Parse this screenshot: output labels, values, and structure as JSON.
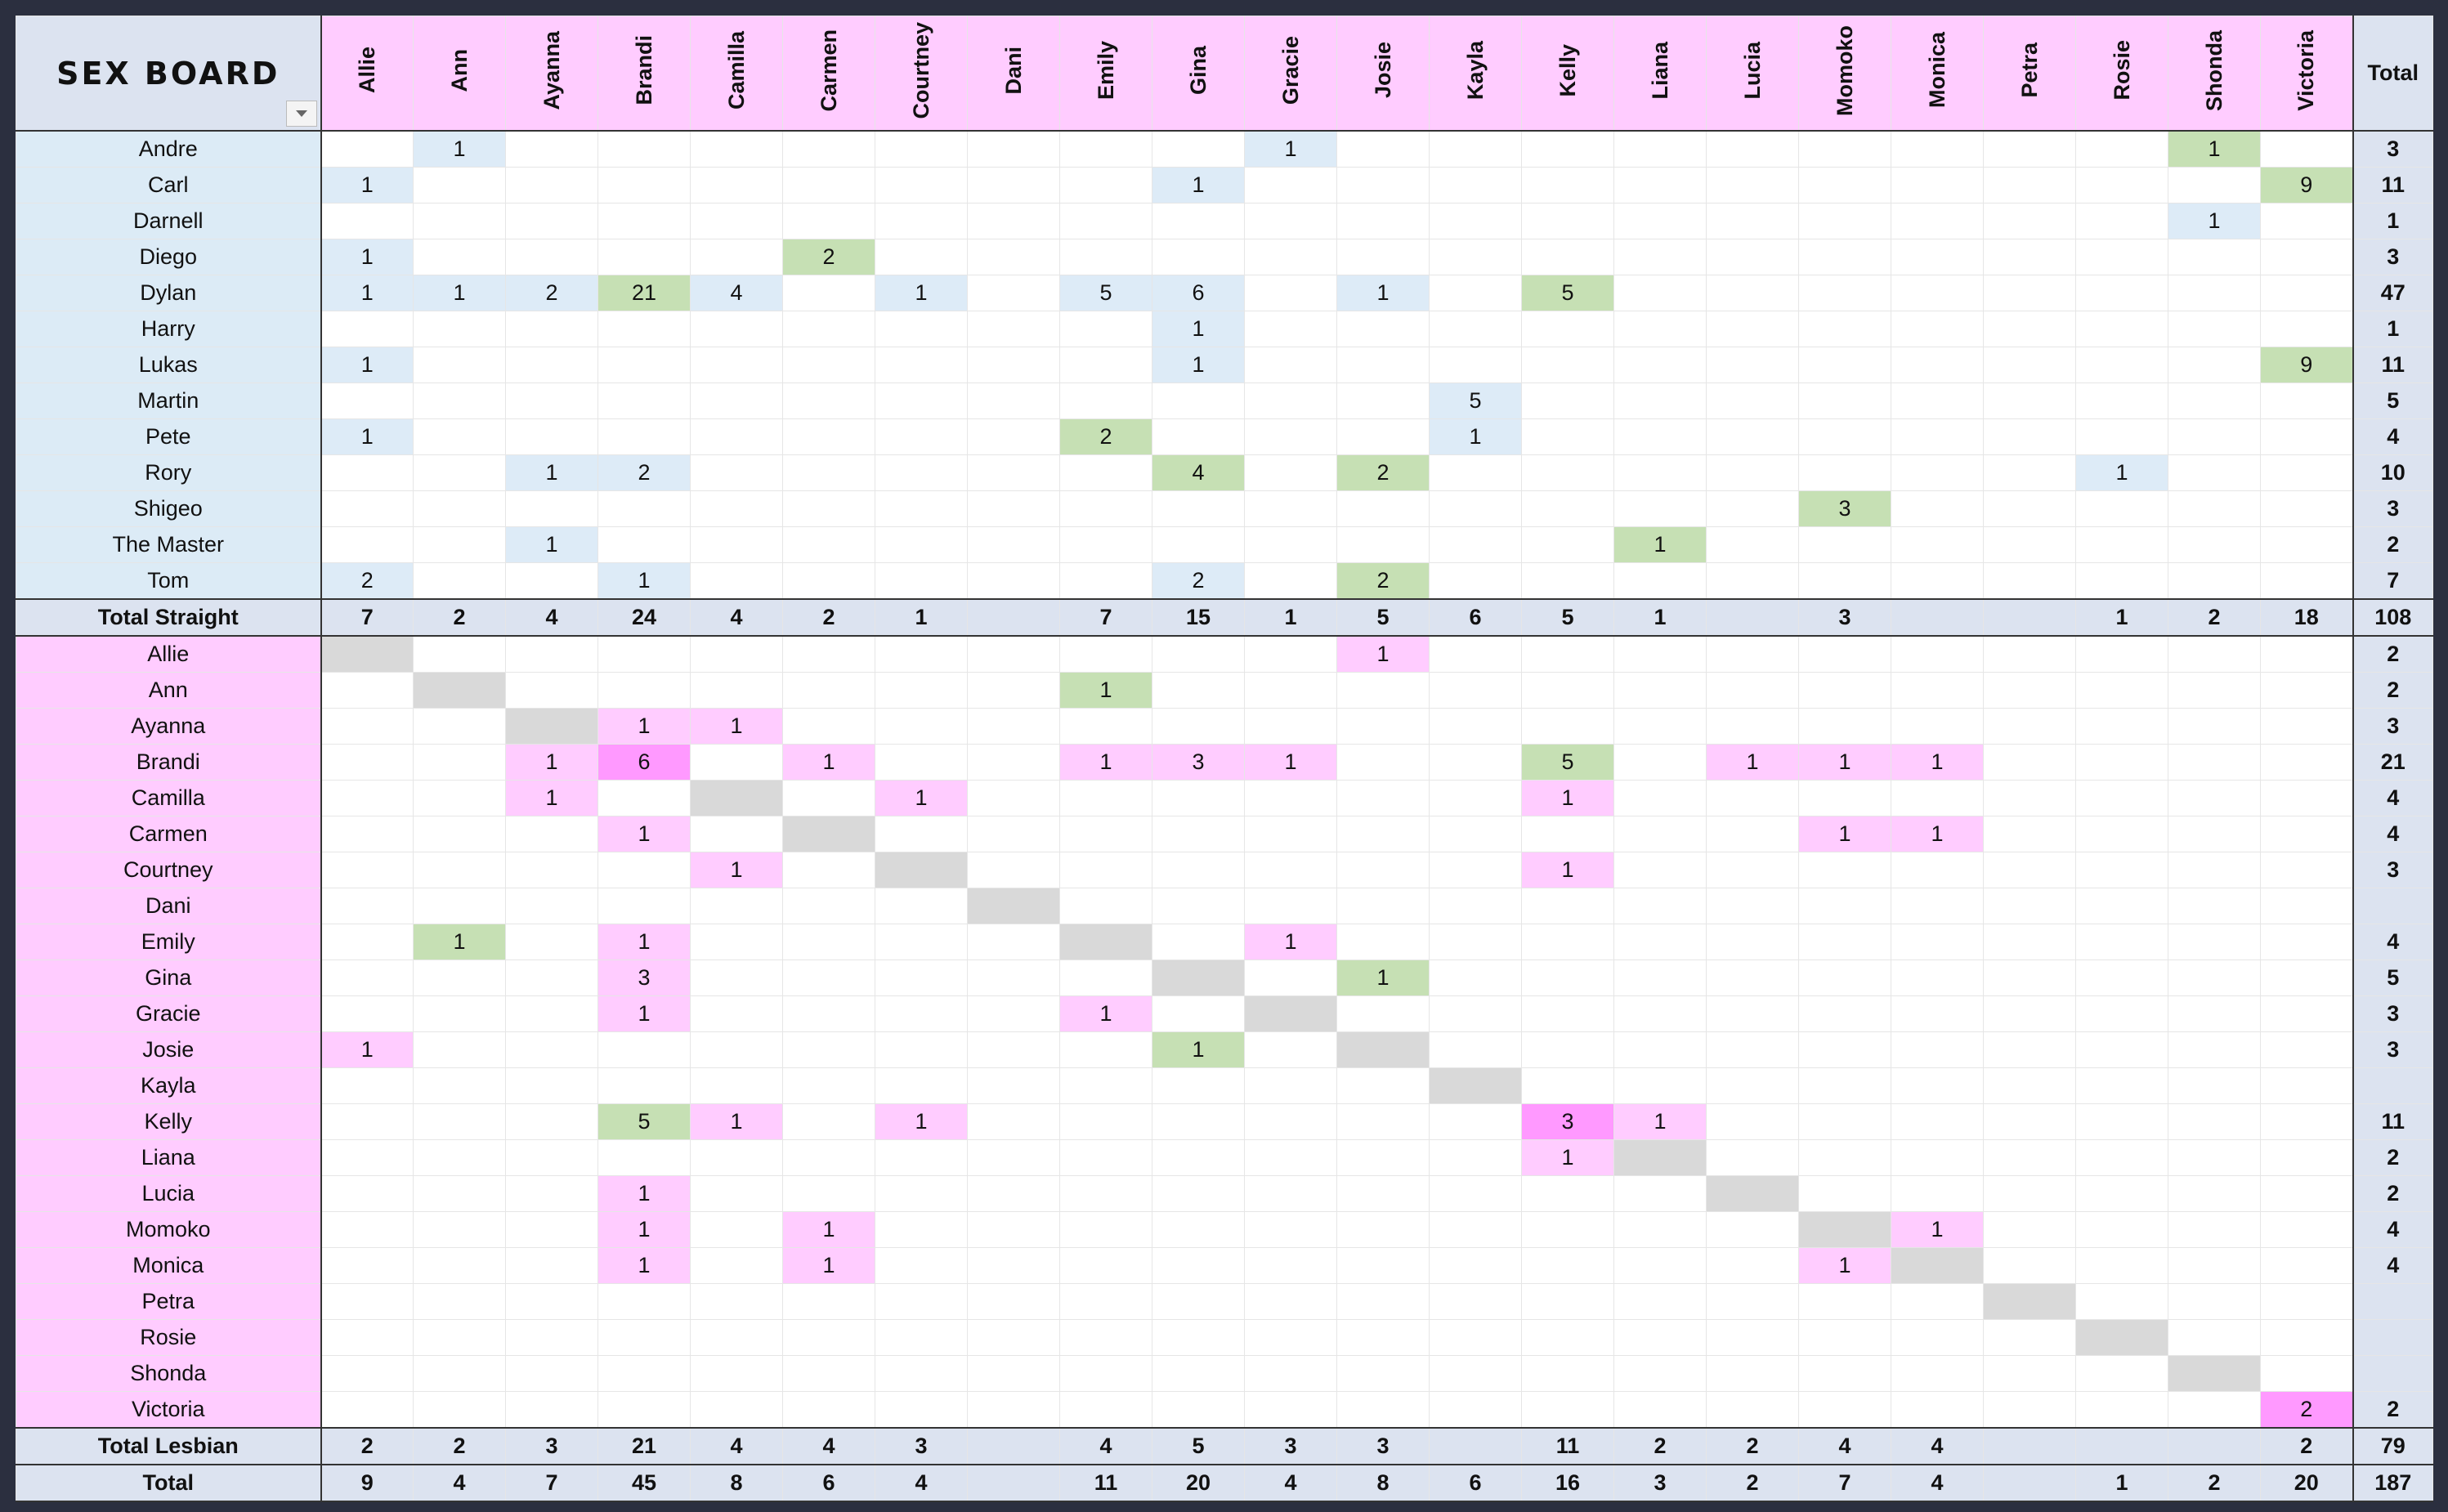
{
  "title": "SEX BOARD",
  "columns": [
    "Allie",
    "Ann",
    "Ayanna",
    "Brandi",
    "Camilla",
    "Carmen",
    "Courtney",
    "Dani",
    "Emily",
    "Gina",
    "Gracie",
    "Josie",
    "Kayla",
    "Kelly",
    "Liana",
    "Lucia",
    "Momoko",
    "Monica",
    "Petra",
    "Rosie",
    "Shonda",
    "Victoria"
  ],
  "total_label": "Total",
  "straight": {
    "rows": [
      {
        "name": "Andre",
        "cells": [
          null,
          1,
          null,
          null,
          null,
          null,
          null,
          null,
          null,
          null,
          1,
          null,
          null,
          null,
          null,
          null,
          null,
          null,
          null,
          null,
          1,
          null
        ],
        "total": 3
      },
      {
        "name": "Carl",
        "cells": [
          1,
          null,
          null,
          null,
          null,
          null,
          null,
          null,
          null,
          1,
          null,
          null,
          null,
          null,
          null,
          null,
          null,
          null,
          null,
          null,
          null,
          9
        ],
        "total": 11
      },
      {
        "name": "Darnell",
        "cells": [
          null,
          null,
          null,
          null,
          null,
          null,
          null,
          null,
          null,
          null,
          null,
          null,
          null,
          null,
          null,
          null,
          null,
          null,
          null,
          null,
          1,
          null
        ],
        "total": 1
      },
      {
        "name": "Diego",
        "cells": [
          1,
          null,
          null,
          null,
          null,
          2,
          null,
          null,
          null,
          null,
          null,
          null,
          null,
          null,
          null,
          null,
          null,
          null,
          null,
          null,
          null,
          null
        ],
        "total": 3
      },
      {
        "name": "Dylan",
        "cells": [
          1,
          1,
          2,
          21,
          4,
          null,
          1,
          null,
          5,
          6,
          null,
          1,
          null,
          5,
          null,
          null,
          null,
          null,
          null,
          null,
          null,
          null
        ],
        "total": 47
      },
      {
        "name": "Harry",
        "cells": [
          null,
          null,
          null,
          null,
          null,
          null,
          null,
          null,
          null,
          1,
          null,
          null,
          null,
          null,
          null,
          null,
          null,
          null,
          null,
          null,
          null,
          null
        ],
        "total": 1
      },
      {
        "name": "Lukas",
        "cells": [
          1,
          null,
          null,
          null,
          null,
          null,
          null,
          null,
          null,
          1,
          null,
          null,
          null,
          null,
          null,
          null,
          null,
          null,
          null,
          null,
          null,
          9
        ],
        "total": 11
      },
      {
        "name": "Martin",
        "cells": [
          null,
          null,
          null,
          null,
          null,
          null,
          null,
          null,
          null,
          null,
          null,
          null,
          5,
          null,
          null,
          null,
          null,
          null,
          null,
          null,
          null,
          null
        ],
        "total": 5
      },
      {
        "name": "Pete",
        "cells": [
          1,
          null,
          null,
          null,
          null,
          null,
          null,
          null,
          2,
          null,
          null,
          null,
          1,
          null,
          null,
          null,
          null,
          null,
          null,
          null,
          null,
          null
        ],
        "total": 4
      },
      {
        "name": "Rory",
        "cells": [
          null,
          null,
          1,
          2,
          null,
          null,
          null,
          null,
          null,
          4,
          null,
          2,
          null,
          null,
          null,
          null,
          null,
          null,
          null,
          1,
          null,
          null
        ],
        "total": 10
      },
      {
        "name": "Shigeo",
        "cells": [
          null,
          null,
          null,
          null,
          null,
          null,
          null,
          null,
          null,
          null,
          null,
          null,
          null,
          null,
          null,
          null,
          3,
          null,
          null,
          null,
          null,
          null
        ],
        "total": 3
      },
      {
        "name": "The Master",
        "cells": [
          null,
          null,
          1,
          null,
          null,
          null,
          null,
          null,
          null,
          null,
          null,
          null,
          null,
          null,
          1,
          null,
          null,
          null,
          null,
          null,
          null,
          null
        ],
        "total": 2
      },
      {
        "name": "Tom",
        "cells": [
          2,
          null,
          null,
          1,
          null,
          null,
          null,
          null,
          null,
          2,
          null,
          2,
          null,
          null,
          null,
          null,
          null,
          null,
          null,
          null,
          null,
          null
        ],
        "total": 7
      }
    ],
    "total_label": "Total Straight",
    "totals": [
      7,
      2,
      4,
      24,
      4,
      2,
      1,
      null,
      7,
      15,
      1,
      5,
      6,
      5,
      1,
      null,
      3,
      null,
      null,
      1,
      2,
      18
    ],
    "total": 108
  },
  "lesbian": {
    "rows": [
      {
        "name": "Allie",
        "cells": [
          null,
          null,
          null,
          null,
          null,
          null,
          null,
          null,
          null,
          null,
          null,
          1,
          null,
          null,
          null,
          null,
          null,
          null,
          null,
          null,
          null,
          null
        ],
        "total": 2
      },
      {
        "name": "Ann",
        "cells": [
          null,
          null,
          null,
          null,
          null,
          null,
          null,
          null,
          1,
          null,
          null,
          null,
          null,
          null,
          null,
          null,
          null,
          null,
          null,
          null,
          null,
          null
        ],
        "total": 2
      },
      {
        "name": "Ayanna",
        "cells": [
          null,
          null,
          null,
          1,
          1,
          null,
          null,
          null,
          null,
          null,
          null,
          null,
          null,
          null,
          null,
          null,
          null,
          null,
          null,
          null,
          null,
          null
        ],
        "total": 3
      },
      {
        "name": "Brandi",
        "cells": [
          null,
          null,
          1,
          6,
          null,
          1,
          null,
          null,
          1,
          3,
          1,
          null,
          null,
          5,
          null,
          1,
          1,
          1,
          null,
          null,
          null,
          null
        ],
        "total": 21
      },
      {
        "name": "Camilla",
        "cells": [
          null,
          null,
          1,
          null,
          null,
          null,
          1,
          null,
          null,
          null,
          null,
          null,
          null,
          1,
          null,
          null,
          null,
          null,
          null,
          null,
          null,
          null
        ],
        "total": 4
      },
      {
        "name": "Carmen",
        "cells": [
          null,
          null,
          null,
          1,
          null,
          null,
          null,
          null,
          null,
          null,
          null,
          null,
          null,
          null,
          null,
          null,
          1,
          1,
          null,
          null,
          null,
          null
        ],
        "total": 4
      },
      {
        "name": "Courtney",
        "cells": [
          null,
          null,
          null,
          null,
          1,
          null,
          null,
          null,
          null,
          null,
          null,
          null,
          null,
          1,
          null,
          null,
          null,
          null,
          null,
          null,
          null,
          null
        ],
        "total": 3
      },
      {
        "name": "Dani",
        "cells": [
          null,
          null,
          null,
          null,
          null,
          null,
          null,
          null,
          null,
          null,
          null,
          null,
          null,
          null,
          null,
          null,
          null,
          null,
          null,
          null,
          null,
          null
        ],
        "total": null
      },
      {
        "name": "Emily",
        "cells": [
          null,
          1,
          null,
          1,
          null,
          null,
          null,
          null,
          null,
          null,
          1,
          null,
          null,
          null,
          null,
          null,
          null,
          null,
          null,
          null,
          null,
          null
        ],
        "total": 4
      },
      {
        "name": "Gina",
        "cells": [
          null,
          null,
          null,
          3,
          null,
          null,
          null,
          null,
          null,
          null,
          null,
          1,
          null,
          null,
          null,
          null,
          null,
          null,
          null,
          null,
          null,
          null
        ],
        "total": 5
      },
      {
        "name": "Gracie",
        "cells": [
          null,
          null,
          null,
          1,
          null,
          null,
          null,
          null,
          1,
          null,
          null,
          null,
          null,
          null,
          null,
          null,
          null,
          null,
          null,
          null,
          null,
          null
        ],
        "total": 3
      },
      {
        "name": "Josie",
        "cells": [
          1,
          null,
          null,
          null,
          null,
          null,
          null,
          null,
          null,
          1,
          null,
          null,
          null,
          null,
          null,
          null,
          null,
          null,
          null,
          null,
          null,
          null
        ],
        "total": 3
      },
      {
        "name": "Kayla",
        "cells": [
          null,
          null,
          null,
          null,
          null,
          null,
          null,
          null,
          null,
          null,
          null,
          null,
          null,
          null,
          null,
          null,
          null,
          null,
          null,
          null,
          null,
          null
        ],
        "total": null
      },
      {
        "name": "Kelly",
        "cells": [
          null,
          null,
          null,
          5,
          1,
          null,
          1,
          null,
          null,
          null,
          null,
          null,
          null,
          3,
          1,
          null,
          null,
          null,
          null,
          null,
          null,
          null
        ],
        "total": 11
      },
      {
        "name": "Liana",
        "cells": [
          null,
          null,
          null,
          null,
          null,
          null,
          null,
          null,
          null,
          null,
          null,
          null,
          null,
          1,
          null,
          null,
          null,
          null,
          null,
          null,
          null,
          null
        ],
        "total": 2
      },
      {
        "name": "Lucia",
        "cells": [
          null,
          null,
          null,
          1,
          null,
          null,
          null,
          null,
          null,
          null,
          null,
          null,
          null,
          null,
          null,
          null,
          null,
          null,
          null,
          null,
          null,
          null
        ],
        "total": 2
      },
      {
        "name": "Momoko",
        "cells": [
          null,
          null,
          null,
          1,
          null,
          1,
          null,
          null,
          null,
          null,
          null,
          null,
          null,
          null,
          null,
          null,
          null,
          1,
          null,
          null,
          null,
          null
        ],
        "total": 4
      },
      {
        "name": "Monica",
        "cells": [
          null,
          null,
          null,
          1,
          null,
          1,
          null,
          null,
          null,
          null,
          null,
          null,
          null,
          null,
          null,
          null,
          1,
          null,
          null,
          null,
          null,
          null
        ],
        "total": 4
      },
      {
        "name": "Petra",
        "cells": [
          null,
          null,
          null,
          null,
          null,
          null,
          null,
          null,
          null,
          null,
          null,
          null,
          null,
          null,
          null,
          null,
          null,
          null,
          null,
          null,
          null,
          null
        ],
        "total": null
      },
      {
        "name": "Rosie",
        "cells": [
          null,
          null,
          null,
          null,
          null,
          null,
          null,
          null,
          null,
          null,
          null,
          null,
          null,
          null,
          null,
          null,
          null,
          null,
          null,
          null,
          null,
          null
        ],
        "total": null
      },
      {
        "name": "Shonda",
        "cells": [
          null,
          null,
          null,
          null,
          null,
          null,
          null,
          null,
          null,
          null,
          null,
          null,
          null,
          null,
          null,
          null,
          null,
          null,
          null,
          null,
          null,
          null
        ],
        "total": null
      },
      {
        "name": "Victoria",
        "cells": [
          null,
          null,
          null,
          null,
          null,
          null,
          null,
          null,
          null,
          null,
          null,
          null,
          null,
          null,
          null,
          null,
          null,
          null,
          null,
          null,
          null,
          2
        ],
        "total": 2
      }
    ],
    "total_label": "Total Lesbian",
    "totals": [
      2,
      2,
      3,
      21,
      4,
      4,
      3,
      null,
      4,
      5,
      3,
      3,
      null,
      11,
      2,
      2,
      4,
      4,
      null,
      null,
      null,
      2
    ],
    "total": 79
  },
  "grand_total": {
    "label": "Total",
    "values": [
      9,
      4,
      7,
      45,
      8,
      6,
      4,
      null,
      11,
      20,
      4,
      8,
      6,
      16,
      3,
      2,
      7,
      4,
      null,
      1,
      2,
      20
    ],
    "total": 187
  }
}
